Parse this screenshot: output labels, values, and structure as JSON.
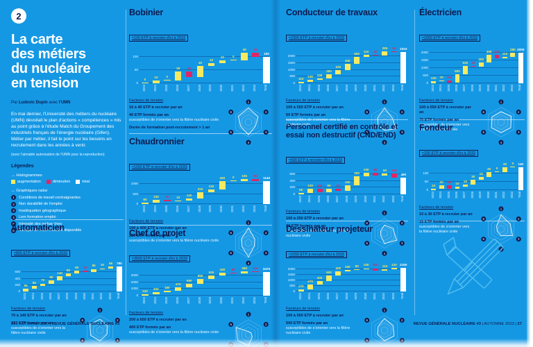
{
  "colors": {
    "background": "#1598E4",
    "navy": "#0D1B4F",
    "increase": "#F5EA61",
    "decrease": "#E02565",
    "total": "#FFFFFF"
  },
  "intro": {
    "number": "2",
    "title_lines": [
      "La carte",
      "des métiers",
      "du nucléaire",
      "en tension"
    ],
    "byline": {
      "prefix": "Par",
      "author": "Ludovic Dupin",
      "mid": "avec",
      "org": "l'UMN"
    },
    "paragraph": "En mai dernier, l'Université des métiers du nucléaire (UMN) dévoilait le plan d'actions « compétences » mis au point grâce à l'étude Match du Groupement des industriels français de l'énergie nucléaire (Gifen). Métier par métier, il fait le point sur les besoins en recrutement dans les années à venir.",
    "note": "(avec l'aimable autorisation de l'UMN pour la reproduction)",
    "legend_title": "Légendes",
    "histograms_label": "→ Histogrammes",
    "legend_items": [
      {
        "label": "augmentation",
        "color": "#F5EA61"
      },
      {
        "label": "diminution",
        "color": "#E02565"
      },
      {
        "label": "total",
        "color": "#FFFFFF"
      }
    ],
    "radar_label": "→ Graphiques radar",
    "radar_factors": [
      "Conditions de travail contraignantes",
      "Non durabilité de l'emploi",
      "Inadéquation géographique",
      "Lien formation emploi",
      "Intensité des embauches",
      "Manque de main d'œuvre disponible"
    ]
  },
  "professions": [
    {
      "id": "bobinier",
      "name": "Bobinier",
      "subtitle": "≈100 ETP à recruter d'ici à 2033",
      "factors_title": "Facteurs de tension",
      "fact1": "10 à 40 ETP à recruter par an",
      "fact2_bold": "40 ETP formés par an",
      "fact2_rest": "susceptibles de s'orienter vers la filière nucléaire civile",
      "fact3": "Durée de formation post-recrutement > 1 an",
      "chart": {
        "type": "waterfall",
        "x": [
          "2023",
          "2024",
          "2025",
          "2026",
          "2027",
          "2028",
          "2029",
          "2030",
          "2031",
          "2032",
          "2033"
        ],
        "total_label": "Total",
        "values": [
          0,
          10,
          0,
          35,
          -20,
          40,
          10,
          10,
          0,
          30,
          -15
        ],
        "total": 100,
        "yticks": [
          0,
          50,
          100
        ],
        "ylim": 130
      },
      "radar": [
        0.95,
        0.75,
        0.55,
        0.85,
        0.6,
        0.8
      ]
    },
    {
      "id": "chaudronnier",
      "name": "Chaudronnier",
      "subtitle": "≈1150 ETP à recruter d'ici à 2033",
      "factors_title": "Facteurs de tension",
      "fact1": "100 à 400 ETP à recruter par an",
      "fact2_bold": "250 ETP formés par an",
      "fact2_rest": "susceptibles de s'orienter vers la filière nucléaire civile",
      "chart": {
        "type": "waterfall",
        "x": [
          "2023",
          "2024",
          "2025",
          "2026",
          "2027",
          "2028",
          "2029",
          "2030",
          "2031",
          "2032",
          "2033"
        ],
        "total_label": "Total",
        "values": [
          80,
          130,
          -60,
          10,
          120,
          310,
          130,
          400,
          0,
          105,
          -85
        ],
        "total": 1140,
        "yticks": [
          0,
          500,
          1000
        ],
        "ylim": 1300
      },
      "radar": [
        1.0,
        0.5,
        0.45,
        0.95,
        0.5,
        0.55
      ]
    },
    {
      "id": "chef-de-projet",
      "name": "Chef de projet",
      "subtitle": "≈3500 ETP à recruter d'ici à 2033",
      "factors_title": "Facteurs de tension",
      "fact1": "200 à 650 ETP à recruter par an",
      "fact2_bold": "400 ETP formés par an",
      "fact2_rest": "susceptibles de s'orienter vers la filière nucléaire civile",
      "chart": {
        "type": "waterfall",
        "x": [
          "2023",
          "2024",
          "2025",
          "2026",
          "2027",
          "2028",
          "2029",
          "2030",
          "2031",
          "2032",
          "2033"
        ],
        "total_label": "Total",
        "values": [
          240,
          320,
          180,
          470,
          580,
          650,
          530,
          430,
          -60,
          280,
          -150
        ],
        "total": 3470,
        "yticks": [
          0,
          1000,
          2000,
          3000
        ],
        "ylim": 3900
      },
      "radar": [
        0.2,
        0.2,
        0.3,
        0.75,
        0.85,
        0.95
      ]
    },
    {
      "id": "automaticien",
      "name": "Automaticien",
      "subtitle": "≈800 ETP à recruter d'ici à 2033",
      "factors_title": "Facteurs de tension",
      "fact1": "70 à 140 ETP à recruter par an",
      "fact2_bold": "233 ETP formés par an",
      "fact2_rest": "susceptibles de s'orienter vers la filière nucléaire civile",
      "chart": {
        "type": "waterfall",
        "x": [
          "2023",
          "2024",
          "2025",
          "2026",
          "2027",
          "2028",
          "2029",
          "2030",
          "2031",
          "2032",
          "2033"
        ],
        "total_label": "Total",
        "values": [
          95,
          85,
          70,
          90,
          140,
          85,
          90,
          -40,
          85,
          15,
          65
        ],
        "total": 780,
        "yticks": [
          0,
          200,
          400,
          600
        ],
        "ylim": 860
      },
      "radar": [
        0.75,
        0.6,
        0.55,
        0.7,
        0.7,
        0.8
      ]
    },
    {
      "id": "conducteur-de-travaux",
      "name": "Conducteur de travaux",
      "subtitle": "≈2300 ETP à recruter d'ici à 2033",
      "factors_title": "Facteurs de tension",
      "fact1": "100 à 550 ETP à recruter par an",
      "fact2_bold": "50 ETP formés par an",
      "fact2_rest": "susceptibles de s'orienter vers la filière nucléaire civile",
      "chart": {
        "type": "waterfall",
        "x": [
          "2023",
          "2024",
          "2025",
          "2026",
          "2027",
          "2028",
          "2029",
          "2030",
          "2031",
          "2032",
          "2033"
        ],
        "total_label": "Total",
        "values": [
          110,
          130,
          135,
          280,
          320,
          440,
          550,
          110,
          -20,
          295,
          -40
        ],
        "total": 2310,
        "yticks": [
          0,
          500,
          1000,
          1500,
          2000
        ],
        "ylim": 2550
      },
      "radar": [
        0.95,
        0.6,
        0.9,
        0.55,
        0.5,
        0.55
      ]
    },
    {
      "id": "personnel-certifie-cnd-end",
      "name": "Personnel certifié en contrôle et essai non destructif (CND/END)",
      "subtitle": "≈500 ETP à recruter d'ici à 2033",
      "factors_title": "Facteurs de tension",
      "fact1": "100 à 250 ETP à recruter par an",
      "fact2_bold": "30 ETP formés par an",
      "fact2_rest": "susceptibles de s'orienter vers la filière nucléaire civile",
      "chart": {
        "type": "waterfall",
        "x": [
          "2023",
          "2024",
          "2025",
          "2026",
          "2027",
          "2028",
          "2029",
          "2030",
          "2031",
          "2032",
          "2033"
        ],
        "total_label": "Total",
        "values": [
          50,
          120,
          -100,
          90,
          -50,
          150,
          280,
          100,
          -80,
          50,
          -120
        ],
        "total": 490,
        "yticks": [
          0,
          200,
          400,
          600
        ],
        "ylim": 700
      },
      "radar": [
        0.55,
        0.65,
        0.95,
        0.7,
        0.3,
        0.3
      ]
    },
    {
      "id": "dessinateur-projeteur",
      "name": "Dessinateur projeteur",
      "subtitle": "≈2200 ETP à recruter d'ici à 2033",
      "factors_title": "Facteurs de tension",
      "fact1": "100 à 500 ETP à recruter par an",
      "fact2_bold": "500 ETP formés par an",
      "fact2_rest": "susceptibles de s'orienter vers la filière nucléaire civile",
      "chart": {
        "type": "waterfall",
        "x": [
          "2023",
          "2024",
          "2025",
          "2026",
          "2027",
          "2028",
          "2029",
          "2030",
          "2031",
          "2032",
          "2033"
        ],
        "total_label": "Total",
        "values": [
          170,
          470,
          300,
          500,
          400,
          100,
          80,
          100,
          -200,
          110,
          120
        ],
        "total": 2150,
        "yticks": [
          0,
          500,
          1000,
          1500,
          2000
        ],
        "ylim": 2400
      },
      "radar": [
        0.8,
        0.65,
        0.75,
        0.7,
        0.55,
        0.5
      ]
    },
    {
      "id": "electricien",
      "name": "Électricien",
      "subtitle": "≈2000 ETP à recruter d'ici à 2033",
      "factors_title": "Facteurs de tension",
      "fact1": "100 à 550 ETP à recruter par an",
      "fact2_bold": "70 ETP formés par an",
      "fact2_rest": "susceptibles de s'orienter vers la filière nucléaire civile",
      "chart": {
        "type": "waterfall",
        "x": [
          "2023",
          "2024",
          "2025",
          "2026",
          "2027",
          "2028",
          "2029",
          "2030",
          "2031",
          "2032",
          "2033"
        ],
        "total_label": "Total",
        "values": [
          130,
          70,
          -150,
          550,
          530,
          -40,
          250,
          490,
          -220,
          110,
          280
        ],
        "total": 2000,
        "yticks": [
          0,
          500,
          1000,
          1500,
          2000
        ],
        "ylim": 2250
      },
      "radar": [
        0.7,
        0.8,
        0.75,
        0.7,
        0.75,
        0.7
      ]
    },
    {
      "id": "fondeur",
      "name": "Fondeur",
      "subtitle": "≈150 ETP à recruter d'ici à 2033",
      "factors_title": "Facteurs de tension",
      "fact1": "10 à 30 ETP à recruter par an",
      "fact2_bold": "15 ETP formés par an",
      "fact2_rest": "susceptibles de s'orienter vers la filière nucléaire civile",
      "chart": {
        "type": "waterfall",
        "x": [
          "2023",
          "2024",
          "2025",
          "2026",
          "2027",
          "2028",
          "2029",
          "2030",
          "2031",
          "2032",
          "2033"
        ],
        "total_label": "Total",
        "values": [
          10,
          20,
          -20,
          10,
          15,
          30,
          15,
          30,
          0,
          30,
          0
        ],
        "total": 140,
        "yticks": [
          0,
          50,
          100
        ],
        "ylim": 160
      },
      "radar": [
        0.95,
        0.7,
        0.9,
        0.45,
        0.3,
        0.35
      ]
    }
  ],
  "illustration_icon": "crossed-pencil-and-tool-illustration",
  "footers": {
    "left_prefix": "26 | AUTOMNE 2023 | ",
    "left_bold": "REVUE GÉNÉRALE NUCLÉAIRE #3",
    "right_bold": "REVUE GÉNÉRALE NUCLÉAIRE #3",
    "right_mid": " | AUTOMNE 2023 | ",
    "right_page": "27"
  }
}
